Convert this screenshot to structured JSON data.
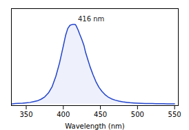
{
  "chart_data": {
    "type": "line",
    "x": [
      330,
      335,
      340,
      345,
      350,
      355,
      360,
      365,
      370,
      375,
      380,
      385,
      390,
      395,
      400,
      403,
      406,
      409,
      412,
      415,
      416,
      417,
      418,
      420,
      422,
      425,
      428,
      430,
      433,
      436,
      440,
      444,
      448,
      452,
      456,
      460,
      465,
      470,
      475,
      480,
      485,
      490,
      495,
      500,
      505,
      510,
      515,
      520,
      525,
      530,
      535,
      540,
      545,
      550
    ],
    "values": [
      0.0,
      0.005,
      0.008,
      0.01,
      0.015,
      0.02,
      0.03,
      0.04,
      0.06,
      0.09,
      0.14,
      0.22,
      0.35,
      0.52,
      0.73,
      0.86,
      0.95,
      0.99,
      1.0,
      1.0,
      1.0,
      0.99,
      0.97,
      0.93,
      0.88,
      0.81,
      0.73,
      0.65,
      0.56,
      0.47,
      0.37,
      0.28,
      0.21,
      0.16,
      0.12,
      0.09,
      0.065,
      0.048,
      0.036,
      0.027,
      0.021,
      0.016,
      0.013,
      0.01,
      0.008,
      0.007,
      0.006,
      0.005,
      0.004,
      0.003,
      0.003,
      0.002,
      0.002,
      0.001
    ],
    "color": "#2244cc",
    "xlabel": "Wavelength (nm)",
    "xlim": [
      330,
      555
    ],
    "ylim": [
      -0.02,
      1.2
    ],
    "xticks": [
      350,
      400,
      450,
      500,
      550
    ],
    "yticks": [],
    "tick_labels": "x",
    "annotations": [
      {
        "text": "416 nm",
        "x": 416,
        "y": 1.04
      }
    ]
  }
}
